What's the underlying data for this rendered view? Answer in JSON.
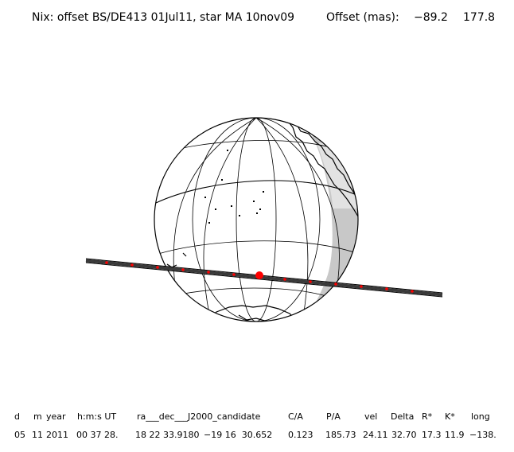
{
  "header": {
    "title": "Nix: offset BS/DE413 01Jul11, star MA 10nov09",
    "offset_label": "Offset (mas):",
    "offset_x": "−89.2",
    "offset_y": "177.8"
  },
  "colors": {
    "background": "#ffffff",
    "outline": "#000000",
    "night_shade": "#c8c8c8",
    "track": "#1a1a1a",
    "track_marker": "#ff0000",
    "center_point": "#ff0000"
  },
  "table": {
    "columns": [
      "d",
      "m",
      "year",
      "h:m:s UT",
      "ra___dec___J2000_candidate",
      "C/A",
      "P/A",
      "vel",
      "Delta",
      "R*",
      "K*",
      "long"
    ],
    "values": [
      "05",
      "11",
      "2011",
      "00 37 28.",
      "18 22 33.9180",
      "−19 16  30.652",
      "0.123",
      "185.73",
      "24.11",
      "32.70",
      "17.3",
      "11.9",
      "−138."
    ]
  }
}
